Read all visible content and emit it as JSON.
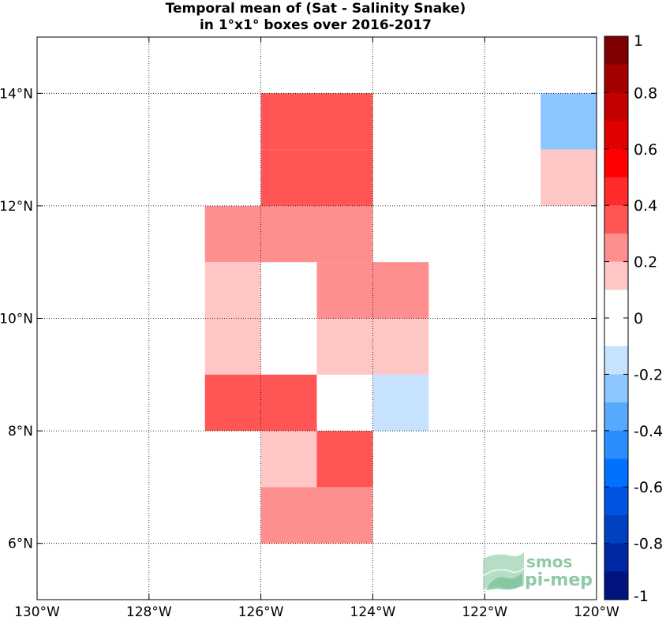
{
  "chart_data": {
    "type": "heatmap",
    "title": [
      "Temporal mean of (Sat - Salinity Snake)",
      "in 1°x1° boxes over 2016-2017"
    ],
    "xlim": [
      -130,
      -120
    ],
    "ylim": [
      5,
      15
    ],
    "grid": true,
    "x_ticks": [
      {
        "value": -130,
        "label": "130°W"
      },
      {
        "value": -128,
        "label": "128°W"
      },
      {
        "value": -126,
        "label": "126°W"
      },
      {
        "value": -124,
        "label": "124°W"
      },
      {
        "value": -122,
        "label": "122°W"
      },
      {
        "value": -120,
        "label": "120°W"
      }
    ],
    "y_ticks": [
      {
        "value": 6,
        "label": "6°N"
      },
      {
        "value": 8,
        "label": "8°N"
      },
      {
        "value": 10,
        "label": "10°N"
      },
      {
        "value": 12,
        "label": "12°N"
      },
      {
        "value": 14,
        "label": "14°N"
      }
    ],
    "cells": [
      {
        "lon": -126,
        "lat": 13,
        "value": 0.35
      },
      {
        "lon": -125,
        "lat": 13,
        "value": 0.35
      },
      {
        "lon": -126,
        "lat": 12,
        "value": 0.35
      },
      {
        "lon": -125,
        "lat": 12,
        "value": 0.35
      },
      {
        "lon": -127,
        "lat": 11,
        "value": 0.25
      },
      {
        "lon": -126,
        "lat": 11,
        "value": 0.25
      },
      {
        "lon": -125,
        "lat": 11,
        "value": 0.25
      },
      {
        "lon": -127,
        "lat": 10,
        "value": 0.15
      },
      {
        "lon": -125,
        "lat": 10,
        "value": 0.25
      },
      {
        "lon": -124,
        "lat": 10,
        "value": 0.25
      },
      {
        "lon": -127,
        "lat": 9,
        "value": 0.15
      },
      {
        "lon": -125,
        "lat": 9,
        "value": 0.15
      },
      {
        "lon": -124,
        "lat": 9,
        "value": 0.15
      },
      {
        "lon": -127,
        "lat": 8,
        "value": 0.35
      },
      {
        "lon": -126,
        "lat": 8,
        "value": 0.35
      },
      {
        "lon": -124,
        "lat": 8,
        "value": -0.15
      },
      {
        "lon": -126,
        "lat": 7,
        "value": 0.15
      },
      {
        "lon": -125,
        "lat": 7,
        "value": 0.35
      },
      {
        "lon": -126,
        "lat": 6,
        "value": 0.25
      },
      {
        "lon": -125,
        "lat": 6,
        "value": 0.25
      },
      {
        "lon": -121,
        "lat": 13,
        "value": -0.25
      },
      {
        "lon": -121,
        "lat": 12,
        "value": 0.15
      }
    ],
    "colorbar": {
      "range": [
        -1,
        1
      ],
      "tick_labels": [
        "1",
        "0.8",
        "0.6",
        "0.4",
        "0.2",
        "0",
        "-0.2",
        "-0.4",
        "-0.6",
        "-0.8",
        "-1"
      ],
      "colors_top_to_bottom": [
        "#7f0000",
        "#a30000",
        "#c20000",
        "#e00000",
        "#ff0000",
        "#ff2a2a",
        "#ff5555",
        "#ff8e8e",
        "#ffc6c6",
        "#ffffff",
        "#ffffff",
        "#c6e2ff",
        "#8ec6ff",
        "#55aaff",
        "#2a8eff",
        "#0070ff",
        "#0055e0",
        "#0040c2",
        "#0028a3",
        "#00137f"
      ]
    }
  },
  "watermark": {
    "line1": "smos",
    "line2": "pi-mep"
  }
}
